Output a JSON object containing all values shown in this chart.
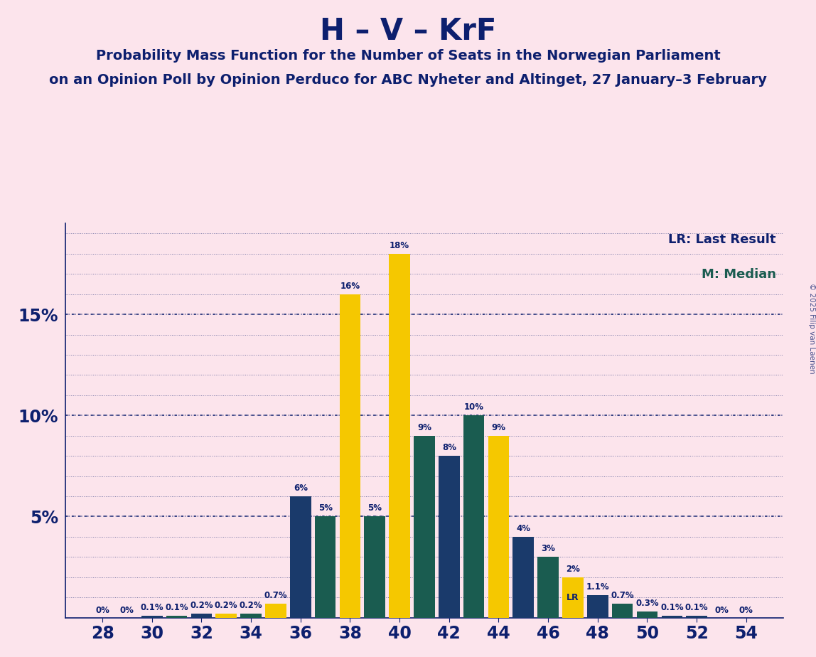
{
  "title": "H – V – KrF",
  "subtitle1": "Probability Mass Function for the Number of Seats in the Norwegian Parliament",
  "subtitle2": "on an Opinion Poll by Opinion Perduco for ABC Nyheter and Altinget, 27 January–3 February",
  "copyright": "© 2025 Filip van Laenen",
  "background_color": "#fce4ec",
  "title_color": "#0d1f6e",
  "bar_color_blue": "#1a3a6b",
  "bar_color_teal": "#1a5c50",
  "bar_color_yellow": "#f5c800",
  "bar_data": [
    [
      28,
      0.0,
      "blue"
    ],
    [
      29,
      0.0,
      "blue"
    ],
    [
      30,
      0.1,
      "blue"
    ],
    [
      31,
      0.1,
      "teal"
    ],
    [
      32,
      0.2,
      "blue"
    ],
    [
      33,
      0.2,
      "yellow"
    ],
    [
      34,
      0.2,
      "teal"
    ],
    [
      35,
      0.7,
      "yellow"
    ],
    [
      36,
      6.0,
      "blue"
    ],
    [
      37,
      5.0,
      "teal"
    ],
    [
      38,
      16.0,
      "yellow"
    ],
    [
      39,
      5.0,
      "teal"
    ],
    [
      40,
      18.0,
      "yellow"
    ],
    [
      41,
      9.0,
      "teal"
    ],
    [
      42,
      8.0,
      "blue"
    ],
    [
      43,
      10.0,
      "teal"
    ],
    [
      44,
      9.0,
      "yellow"
    ],
    [
      45,
      4.0,
      "blue"
    ],
    [
      46,
      3.0,
      "teal"
    ],
    [
      47,
      2.0,
      "yellow"
    ],
    [
      48,
      1.1,
      "blue"
    ],
    [
      49,
      0.7,
      "teal"
    ],
    [
      50,
      0.3,
      "teal"
    ],
    [
      51,
      0.1,
      "blue"
    ],
    [
      52,
      0.1,
      "blue"
    ],
    [
      53,
      0.0,
      "blue"
    ],
    [
      54,
      0.0,
      "blue"
    ]
  ],
  "zero_label_seats": [
    28,
    29,
    53,
    54
  ],
  "lr_seat": 47,
  "median_seat": 40,
  "ylim": [
    0,
    19.5
  ],
  "bar_width": 0.85,
  "xlim": [
    26.5,
    55.5
  ],
  "xticks": [
    28,
    30,
    32,
    34,
    36,
    38,
    40,
    42,
    44,
    46,
    48,
    50,
    52,
    54
  ],
  "yticks": [
    5,
    10,
    15
  ],
  "ytick_labels": [
    "5%",
    "10%",
    "15%"
  ]
}
